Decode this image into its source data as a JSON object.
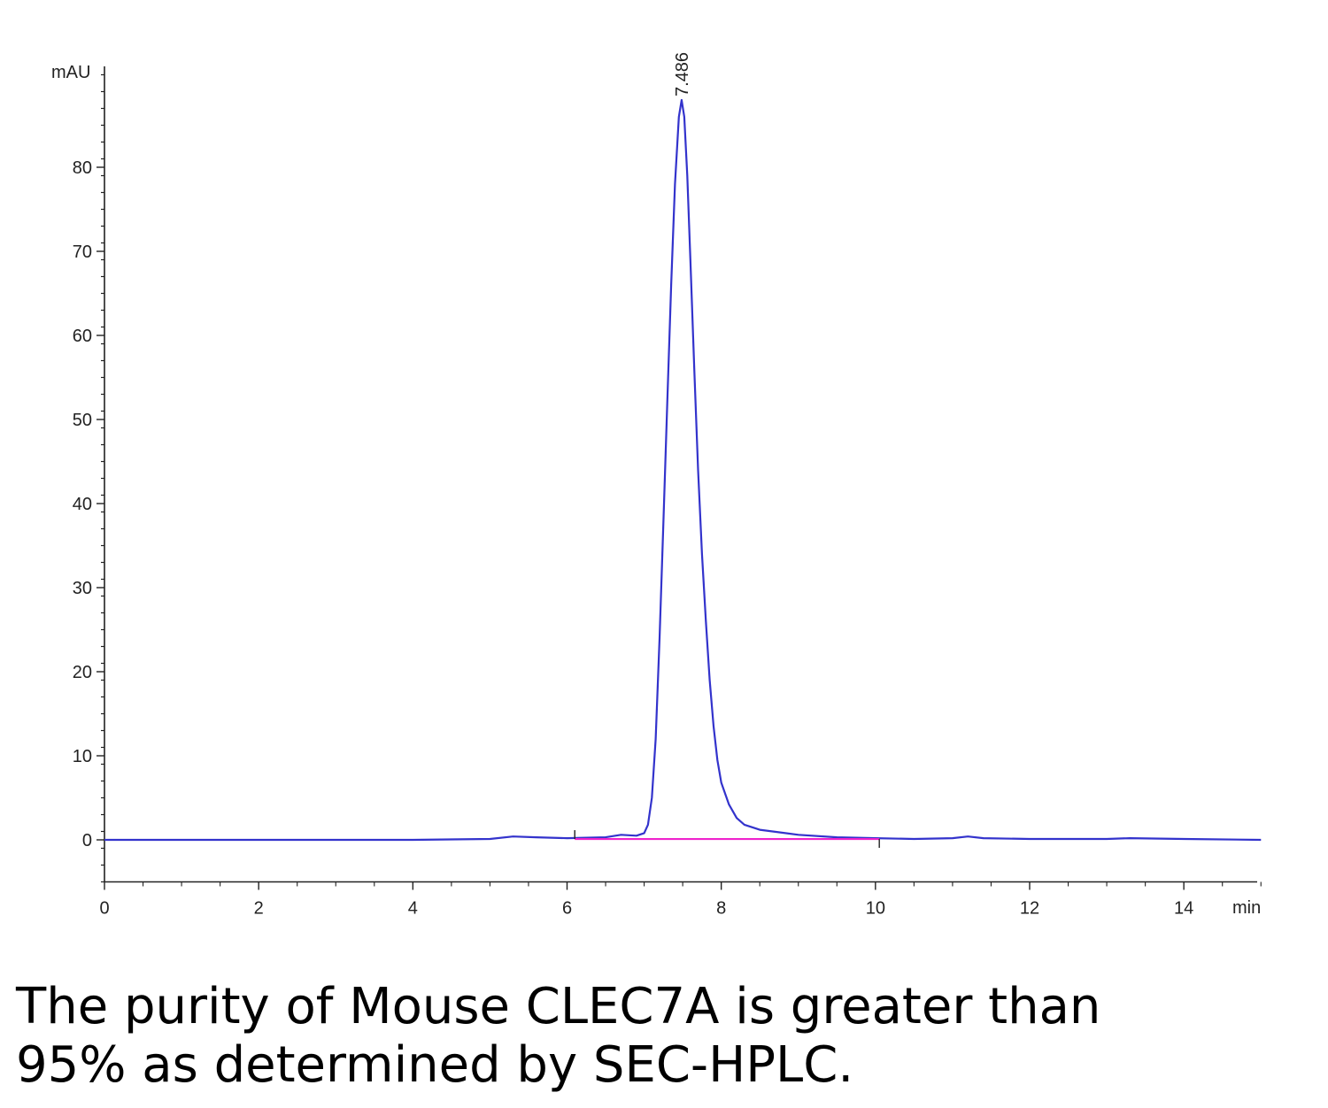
{
  "chart_data": {
    "type": "line",
    "title": "",
    "xlabel": "min",
    "ylabel": "mAU",
    "xlim": [
      0,
      15
    ],
    "ylim": [
      -5,
      92
    ],
    "x_ticks": [
      0,
      2,
      4,
      6,
      8,
      10,
      12,
      14
    ],
    "y_ticks": [
      0,
      10,
      20,
      30,
      40,
      50,
      60,
      70,
      80
    ],
    "grid": false,
    "legend": "none",
    "series": [
      {
        "color": "#3333cc",
        "points": [
          [
            0.0,
            0.0
          ],
          [
            4.0,
            0.0
          ],
          [
            5.0,
            0.1
          ],
          [
            5.3,
            0.4
          ],
          [
            5.6,
            0.3
          ],
          [
            6.0,
            0.2
          ],
          [
            6.5,
            0.3
          ],
          [
            6.7,
            0.6
          ],
          [
            6.9,
            0.5
          ],
          [
            7.0,
            0.8
          ],
          [
            7.05,
            1.8
          ],
          [
            7.1,
            5.0
          ],
          [
            7.15,
            12.0
          ],
          [
            7.2,
            24.0
          ],
          [
            7.25,
            38.0
          ],
          [
            7.3,
            52.0
          ],
          [
            7.35,
            66.0
          ],
          [
            7.4,
            78.0
          ],
          [
            7.45,
            86.0
          ],
          [
            7.486,
            88.0
          ],
          [
            7.52,
            86.0
          ],
          [
            7.56,
            79.0
          ],
          [
            7.6,
            69.0
          ],
          [
            7.65,
            56.0
          ],
          [
            7.7,
            44.0
          ],
          [
            7.75,
            34.0
          ],
          [
            7.8,
            26.0
          ],
          [
            7.85,
            19.0
          ],
          [
            7.9,
            13.5
          ],
          [
            7.95,
            9.5
          ],
          [
            8.0,
            6.8
          ],
          [
            8.1,
            4.2
          ],
          [
            8.2,
            2.6
          ],
          [
            8.3,
            1.8
          ],
          [
            8.5,
            1.2
          ],
          [
            9.0,
            0.6
          ],
          [
            9.5,
            0.3
          ],
          [
            10.0,
            0.2
          ],
          [
            10.5,
            0.1
          ],
          [
            11.0,
            0.2
          ],
          [
            11.2,
            0.4
          ],
          [
            11.4,
            0.2
          ],
          [
            12.0,
            0.1
          ],
          [
            13.0,
            0.1
          ],
          [
            13.3,
            0.2
          ],
          [
            14.0,
            0.1
          ],
          [
            15.0,
            0.0
          ]
        ]
      }
    ],
    "baseline": {
      "color": "#ee22cc",
      "x_start": 6.1,
      "x_end": 10.05,
      "y": 0.1
    },
    "annotations": [
      {
        "text": "7.486",
        "x": 7.486,
        "y": 88.0
      }
    ]
  },
  "caption": {
    "line1": "The purity of Mouse CLEC7A is greater than",
    "line2": "95% as determined by SEC-HPLC."
  }
}
